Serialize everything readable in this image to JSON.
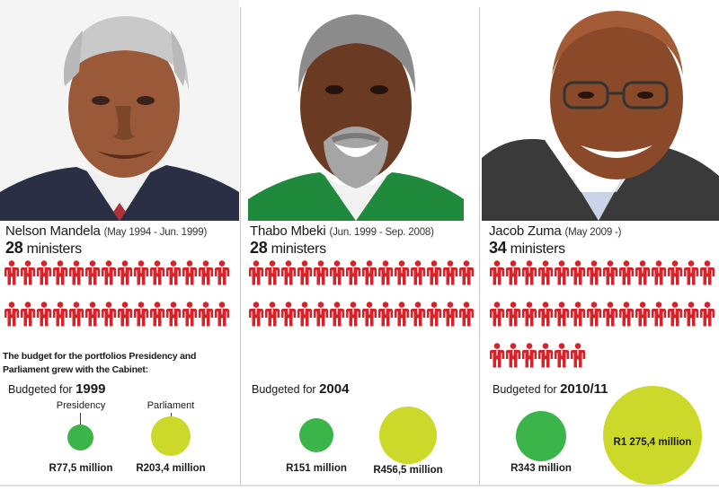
{
  "colors": {
    "minister_icon": "#d8222a",
    "presidency": "#3bb54a",
    "parliament": "#ccd92b"
  },
  "columns": [
    {
      "name": "Nelson Mandela",
      "term": "(May 1994 - Jun. 1999)",
      "ministers_count": "28",
      "ministers_word": "ministers",
      "budget_prefix": "Budgeted for",
      "budget_year": "1999",
      "presidency_amount": "R77,5 million",
      "parliament_amount": "R203,4 million",
      "presidency_value": 77.5,
      "parliament_value": 203.4
    },
    {
      "name": "Thabo Mbeki",
      "term": "(Jun. 1999 - Sep. 2008)",
      "ministers_count": "28",
      "ministers_word": "ministers",
      "budget_prefix": "Budgeted for",
      "budget_year": "2004",
      "presidency_amount": "R151 million",
      "parliament_amount": "R456,5 million",
      "presidency_value": 151,
      "parliament_value": 456.5
    },
    {
      "name": "Jacob Zuma",
      "term": "(May 2009 -)",
      "ministers_count": "34",
      "ministers_word": "ministers",
      "budget_prefix": "Budgeted for",
      "budget_year": "2010/11",
      "presidency_amount": "R343 million",
      "parliament_amount": "R1 275,4 million",
      "presidency_value": 343,
      "parliament_value": 1275.4
    }
  ],
  "budget_note": "The budget for the portfolios Presidency and Parliament grew with the Cabinet:",
  "legend": {
    "presidency": "Presidency",
    "parliament": "Parliament"
  }
}
